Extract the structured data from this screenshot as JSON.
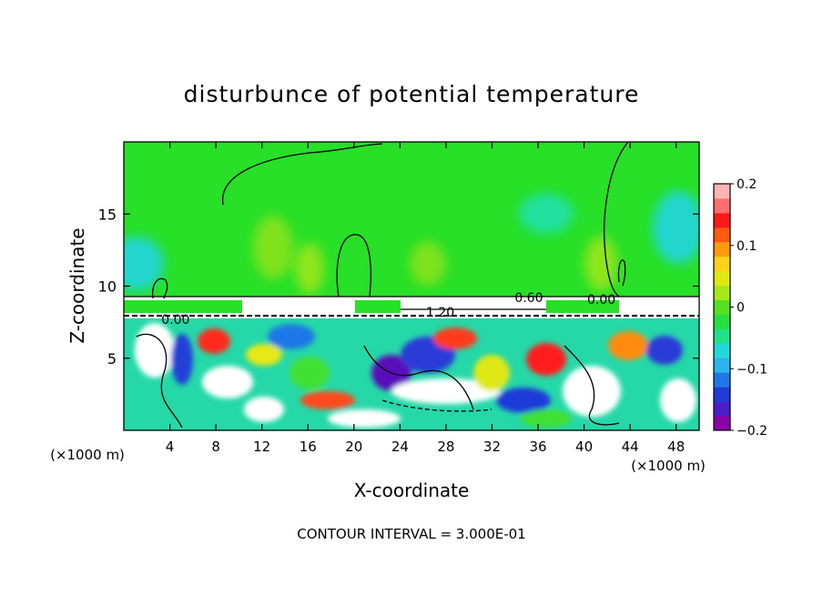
{
  "chart_data": {
    "type": "heatmap",
    "title": "disturbunce of potential temperature",
    "xlabel": "X-coordinate",
    "ylabel": "Z-coordinate",
    "x_unit": "(×1000 m)",
    "x_unit_right": "(×1000 m)",
    "footer": "CONTOUR INTERVAL = 3.000E-01",
    "xlim": [
      0,
      50
    ],
    "ylim": [
      0,
      20
    ],
    "x_ticks": [
      4,
      8,
      12,
      16,
      20,
      24,
      28,
      32,
      36,
      40,
      44,
      48
    ],
    "y_ticks": [
      5,
      10,
      15
    ],
    "colorbar": {
      "range": [
        -0.2,
        0.2
      ],
      "ticks": [
        {
          "value": 0.2,
          "label": "0.2"
        },
        {
          "value": 0.1,
          "label": "0.1"
        },
        {
          "value": 0.0,
          "label": "0"
        },
        {
          "value": -0.1,
          "label": "−0.1"
        },
        {
          "value": -0.2,
          "label": "−0.2"
        }
      ],
      "colors": [
        "#8b00a8",
        "#4a1fc8",
        "#1f3bd8",
        "#1f78e6",
        "#2ab4f0",
        "#22d8d8",
        "#21e28a",
        "#26e040",
        "#55e020",
        "#a6e81a",
        "#dfe812",
        "#ffd21a",
        "#ff9a10",
        "#ff5a10",
        "#ff1a1a",
        "#ff6e6e",
        "#ffb3b3"
      ]
    },
    "contour_labels": [
      {
        "x": 4.5,
        "z": 7.7,
        "text": "0.00"
      },
      {
        "x": 27.5,
        "z": 8.2,
        "text": "1.20"
      },
      {
        "x": 35.2,
        "z": 9.2,
        "text": "0.60"
      },
      {
        "x": 41.5,
        "z": 9.1,
        "text": "0.00"
      }
    ]
  }
}
